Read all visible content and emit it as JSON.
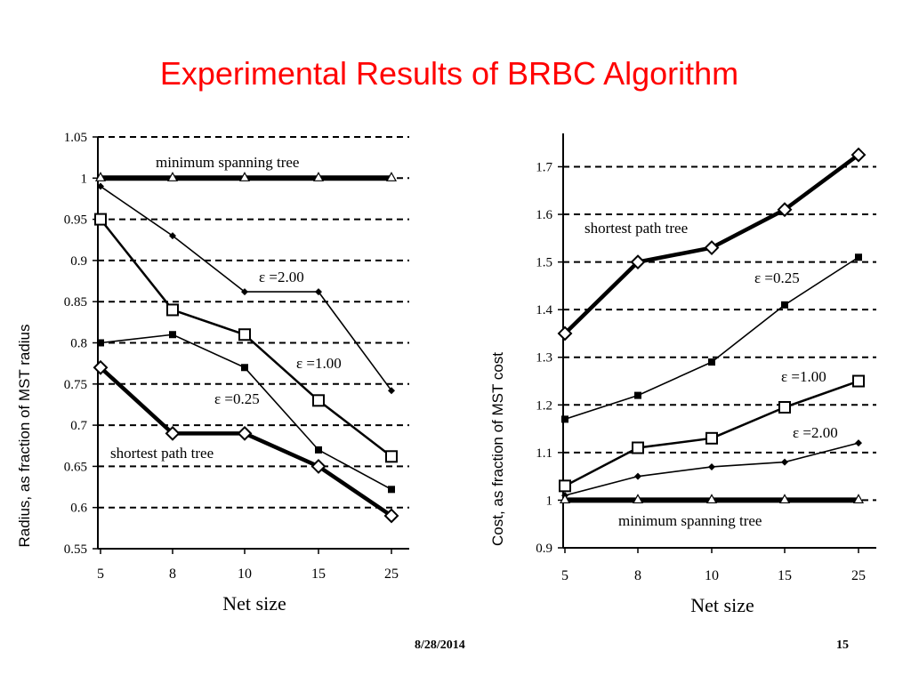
{
  "slide": {
    "title": "Experimental Results of BRBC Algorithm",
    "footer_date": "8/28/2014",
    "footer_page": "15"
  },
  "chart_data": [
    {
      "type": "line",
      "xlabel": "Net size",
      "ylabel": "Radius, as fraction of MST radius",
      "categories": [
        "5",
        "8",
        "10",
        "15",
        "25"
      ],
      "ylim": [
        0.55,
        1.05
      ],
      "yticks": [
        "1.05",
        "1",
        "0.95",
        "0.9",
        "0.85",
        "0.8",
        "0.75",
        "0.7",
        "0.65",
        "0.6",
        "0.55"
      ],
      "grid": "dashed horizontal",
      "series": [
        {
          "name": "minimum spanning tree",
          "marker": "triangle",
          "weight": "bold",
          "values": [
            1.0,
            1.0,
            1.0,
            1.0,
            1.0
          ]
        },
        {
          "name": "ε =2.00",
          "marker": "diamond-filled",
          "weight": "thin",
          "values": [
            0.99,
            0.93,
            0.862,
            0.862,
            0.742
          ]
        },
        {
          "name": "ε =1.00",
          "marker": "square-open",
          "weight": "normal",
          "values": [
            0.95,
            0.84,
            0.81,
            0.73,
            0.662
          ]
        },
        {
          "name": "ε =0.25",
          "marker": "square-filled",
          "weight": "thin",
          "values": [
            0.8,
            0.81,
            0.77,
            0.67,
            0.622
          ]
        },
        {
          "name": "shortest path tree",
          "marker": "diamond-open",
          "weight": "bold",
          "values": [
            0.77,
            0.69,
            0.69,
            0.65,
            0.59
          ]
        }
      ]
    },
    {
      "type": "line",
      "xlabel": "Net size",
      "ylabel": "Cost, as fraction of MST cost",
      "categories": [
        "5",
        "8",
        "10",
        "15",
        "25"
      ],
      "ylim": [
        0.9,
        1.77
      ],
      "yticks": [
        "1.7",
        "1.6",
        "1.5",
        "1.4",
        "1.3",
        "1.2",
        "1.1",
        "1",
        "0.9"
      ],
      "grid": "dashed horizontal",
      "series": [
        {
          "name": "shortest path tree",
          "marker": "diamond-open",
          "weight": "bold",
          "values": [
            1.35,
            1.5,
            1.53,
            1.61,
            1.725
          ]
        },
        {
          "name": "ε =0.25",
          "marker": "square-filled",
          "weight": "thin",
          "values": [
            1.17,
            1.22,
            1.29,
            1.41,
            1.51
          ]
        },
        {
          "name": "ε =1.00",
          "marker": "square-open",
          "weight": "normal",
          "values": [
            1.03,
            1.11,
            1.13,
            1.195,
            1.25
          ]
        },
        {
          "name": "ε =2.00",
          "marker": "diamond-filled",
          "weight": "thin",
          "values": [
            1.01,
            1.05,
            1.07,
            1.08,
            1.12
          ]
        },
        {
          "name": "minimum spanning tree",
          "marker": "triangle",
          "weight": "bold",
          "values": [
            1.0,
            1.0,
            1.0,
            1.0,
            1.0
          ]
        }
      ]
    }
  ]
}
